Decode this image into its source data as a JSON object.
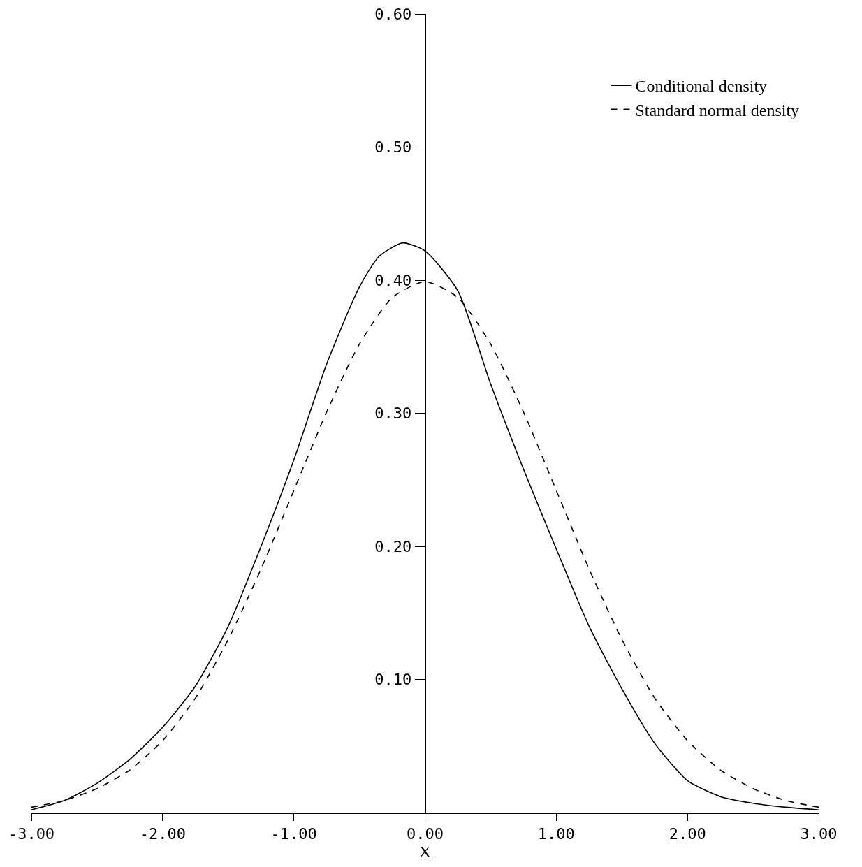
{
  "chart_data": {
    "type": "line",
    "xlabel": "X",
    "x": [
      -3,
      -2.75,
      -2.5,
      -2.25,
      -2,
      -1.75,
      -1.5,
      -1.25,
      -1,
      -0.75,
      -0.5,
      -0.25,
      0,
      0.25,
      0.5,
      0.75,
      1,
      1.25,
      1.5,
      1.75,
      2,
      2.25,
      2.5,
      2.75,
      3
    ],
    "series": [
      {
        "name": "Conditional density",
        "color": "#000000",
        "line_style": "solid",
        "x": [
          -3,
          -2.75,
          -2.5,
          -2.25,
          -2,
          -1.75,
          -1.5,
          -1.25,
          -1,
          -0.75,
          -0.5,
          -0.35,
          -0.17,
          0,
          0.25,
          0.5,
          0.75,
          1,
          1.25,
          1.5,
          1.75,
          2,
          2.25,
          2.5,
          2.75,
          3
        ],
        "values": [
          0.002,
          0.009,
          0.022,
          0.04,
          0.064,
          0.095,
          0.14,
          0.2,
          0.265,
          0.337,
          0.395,
          0.418,
          0.428,
          0.422,
          0.392,
          0.322,
          0.258,
          0.198,
          0.14,
          0.093,
          0.052,
          0.024,
          0.012,
          0.007,
          0.004,
          0.002
        ]
      },
      {
        "name": "Standard normal density",
        "color": "#000000",
        "line_style": "dashed",
        "values": [
          0.004,
          0.009,
          0.018,
          0.032,
          0.054,
          0.086,
          0.13,
          0.183,
          0.242,
          0.301,
          0.352,
          0.387,
          0.399,
          0.387,
          0.352,
          0.301,
          0.242,
          0.183,
          0.13,
          0.086,
          0.054,
          0.032,
          0.018,
          0.009,
          0.004
        ]
      }
    ],
    "xlim": [
      -3,
      3
    ],
    "ylim": [
      0,
      0.6
    ],
    "xticks": [
      {
        "value": -3,
        "label": "-3.00"
      },
      {
        "value": -2,
        "label": "-2.00"
      },
      {
        "value": -1,
        "label": "-1.00"
      },
      {
        "value": 0,
        "label": "0.00"
      },
      {
        "value": 1,
        "label": "1.00"
      },
      {
        "value": 2,
        "label": "2.00"
      },
      {
        "value": 3,
        "label": "3.00"
      }
    ],
    "yticks": [
      {
        "value": 0.1,
        "label": "0.10"
      },
      {
        "value": 0.2,
        "label": "0.20"
      },
      {
        "value": 0.3,
        "label": "0.30"
      },
      {
        "value": 0.4,
        "label": "0.40"
      },
      {
        "value": 0.5,
        "label": "0.50"
      },
      {
        "value": 0.6,
        "label": "0.60"
      }
    ],
    "legend": "top right",
    "grid": false
  }
}
